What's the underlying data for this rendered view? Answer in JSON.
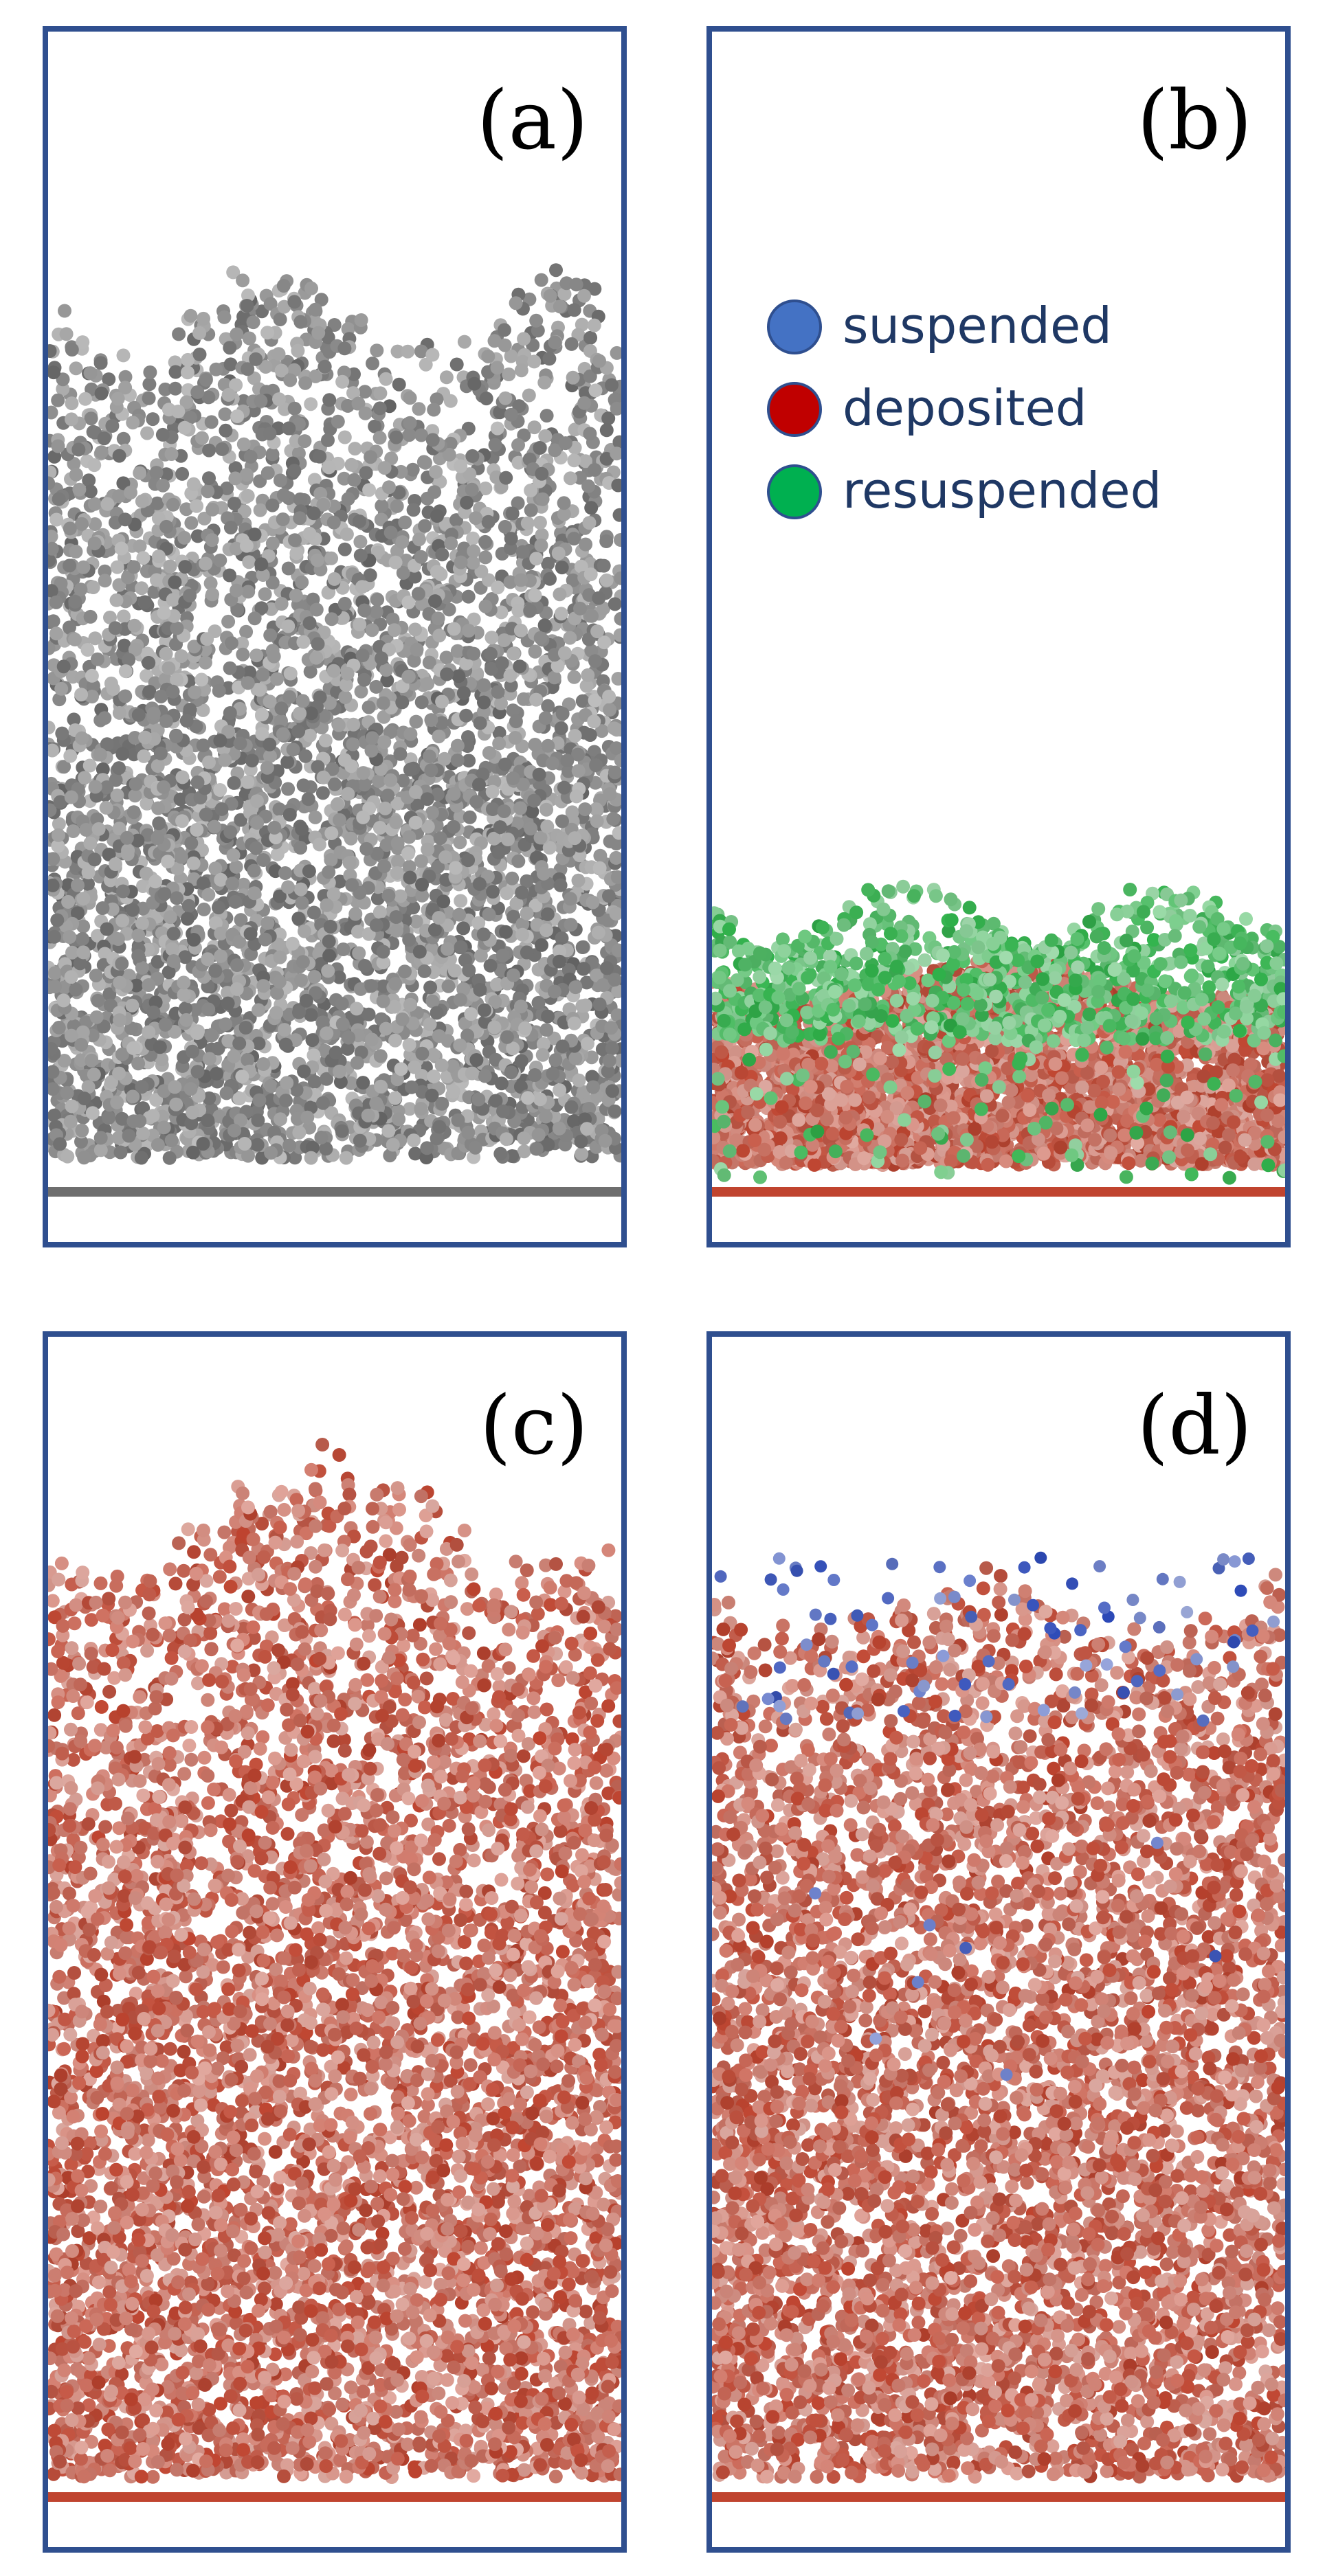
{
  "panels": [
    {
      "id": "a",
      "label": "(a)"
    },
    {
      "id": "b",
      "label": "(b)"
    },
    {
      "id": "c",
      "label": "(c)"
    },
    {
      "id": "d",
      "label": "(d)"
    }
  ],
  "legend": {
    "items": [
      {
        "label": "suspended",
        "color": "#4472c4"
      },
      {
        "label": "deposited",
        "color": "#c00000"
      },
      {
        "label": "resuspended",
        "color": "#00b050"
      }
    ]
  },
  "colors": {
    "frame": "#2f4f8f",
    "grey_particle": "#6e6e6e",
    "red_particle": "#c0442f",
    "green_particle": "#2fb34a",
    "blue_particle": "#2b49b8"
  }
}
